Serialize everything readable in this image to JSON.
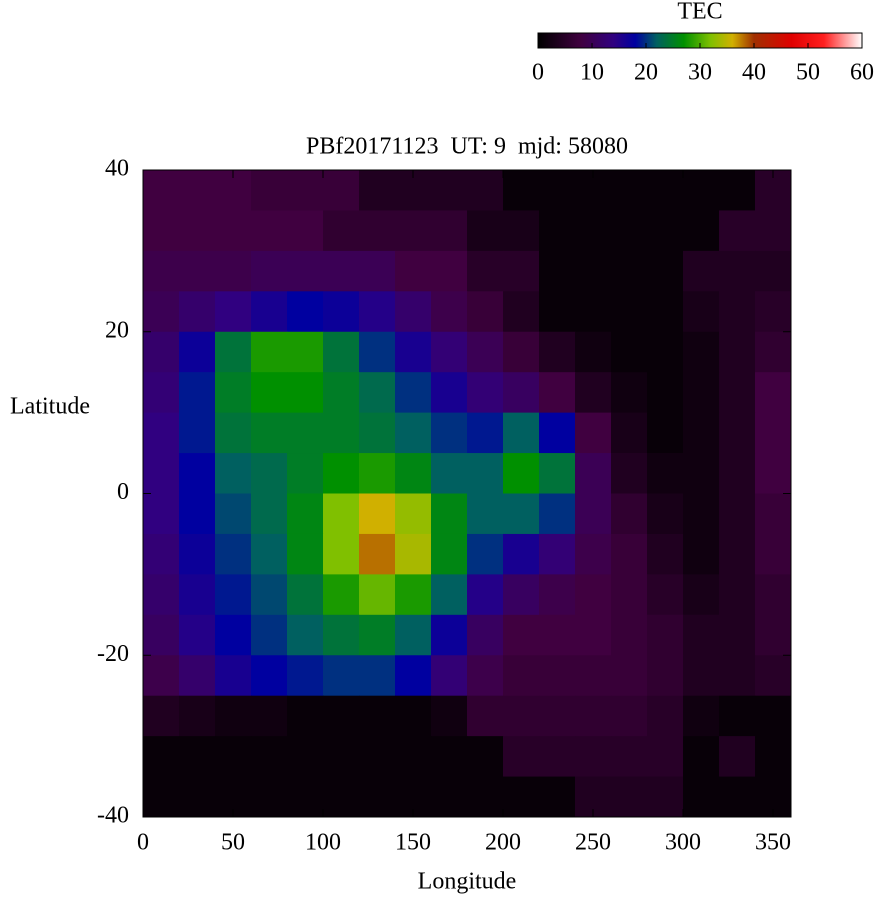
{
  "chart_data": {
    "type": "heatmap",
    "title": "PBf20171123  UT: 9  mjd: 58080",
    "x_label": "Longitude",
    "y_label": "Latitude",
    "colorbar_label": "TEC",
    "xlim": [
      0,
      360
    ],
    "ylim": [
      -40,
      40
    ],
    "xticks": [
      0,
      50,
      100,
      150,
      200,
      250,
      300,
      350
    ],
    "yticks": [
      -40,
      -20,
      0,
      20,
      40
    ],
    "clim": [
      0,
      60
    ],
    "cticks": [
      0,
      10,
      20,
      30,
      40,
      50,
      60
    ],
    "colorscale": [
      [
        0,
        "#000000"
      ],
      [
        8,
        "#400040"
      ],
      [
        14,
        "#300080"
      ],
      [
        18,
        "#0000a0"
      ],
      [
        22,
        "#006060"
      ],
      [
        27,
        "#009000"
      ],
      [
        32,
        "#80c000"
      ],
      [
        36,
        "#d0b000"
      ],
      [
        40,
        "#a03000"
      ],
      [
        47,
        "#e00000"
      ],
      [
        53,
        "#ff2020"
      ],
      [
        60,
        "#ffffff"
      ]
    ],
    "x": [
      10,
      30,
      50,
      70,
      90,
      110,
      130,
      150,
      170,
      190,
      210,
      230,
      250,
      270,
      290,
      310,
      330,
      350
    ],
    "y": [
      37.5,
      32.5,
      27.5,
      22.5,
      17.5,
      12.5,
      7.5,
      2.5,
      -2.5,
      -7.5,
      -12.5,
      -17.5,
      -22.5,
      -27.5,
      -32.5,
      -37.5
    ],
    "values": [
      [
        8,
        8,
        8,
        7,
        7,
        7,
        4,
        4,
        4,
        4,
        1,
        1,
        1,
        1,
        1,
        1,
        1,
        5
      ],
      [
        8,
        8,
        8,
        8,
        8,
        6,
        6,
        6,
        6,
        3,
        3,
        1,
        1,
        1,
        1,
        1,
        5,
        5
      ],
      [
        9,
        9,
        9,
        10,
        10,
        10,
        10,
        8,
        8,
        5,
        5,
        1,
        1,
        1,
        1,
        4,
        4,
        4
      ],
      [
        10,
        12,
        14,
        16,
        18,
        17,
        15,
        12,
        9,
        7,
        4,
        1,
        1,
        1,
        1,
        3,
        4,
        5
      ],
      [
        12,
        17,
        24,
        28,
        28,
        24,
        20,
        16,
        13,
        10,
        7,
        4,
        2,
        1,
        1,
        2,
        4,
        6
      ],
      [
        13,
        19,
        25,
        27,
        27,
        25,
        23,
        20,
        16,
        13,
        11,
        8,
        4,
        2,
        1,
        2,
        4,
        8
      ],
      [
        14,
        19,
        24,
        25,
        25,
        25,
        24,
        22,
        20,
        19,
        22,
        18,
        8,
        3,
        1,
        2,
        4,
        8
      ],
      [
        14,
        18,
        22,
        23,
        25,
        27,
        28,
        26,
        22,
        22,
        27,
        24,
        10,
        4,
        2,
        2,
        4,
        8
      ],
      [
        14,
        18,
        21,
        23,
        26,
        32,
        36,
        33,
        26,
        22,
        22,
        20,
        10,
        6,
        3,
        2,
        4,
        7
      ],
      [
        13,
        17,
        20,
        22,
        26,
        32,
        38,
        34,
        26,
        20,
        16,
        13,
        9,
        7,
        4,
        2,
        4,
        7
      ],
      [
        12,
        16,
        19,
        21,
        24,
        28,
        31,
        28,
        22,
        15,
        11,
        9,
        8,
        7,
        5,
        3,
        4,
        6
      ],
      [
        11,
        15,
        18,
        20,
        22,
        24,
        25,
        22,
        17,
        11,
        8,
        8,
        8,
        7,
        6,
        4,
        4,
        6
      ],
      [
        9,
        12,
        16,
        18,
        19,
        20,
        20,
        18,
        13,
        9,
        7,
        7,
        7,
        7,
        6,
        4,
        4,
        5
      ],
      [
        4,
        3,
        2,
        2,
        1,
        1,
        1,
        1,
        2,
        6,
        6,
        6,
        6,
        6,
        5,
        2,
        1,
        1
      ],
      [
        1,
        1,
        1,
        1,
        1,
        1,
        1,
        1,
        1,
        1,
        5,
        5,
        5,
        5,
        5,
        1,
        4,
        1
      ],
      [
        1,
        1,
        1,
        1,
        1,
        1,
        1,
        1,
        1,
        1,
        1,
        1,
        4,
        4,
        4,
        1,
        1,
        1
      ]
    ]
  }
}
